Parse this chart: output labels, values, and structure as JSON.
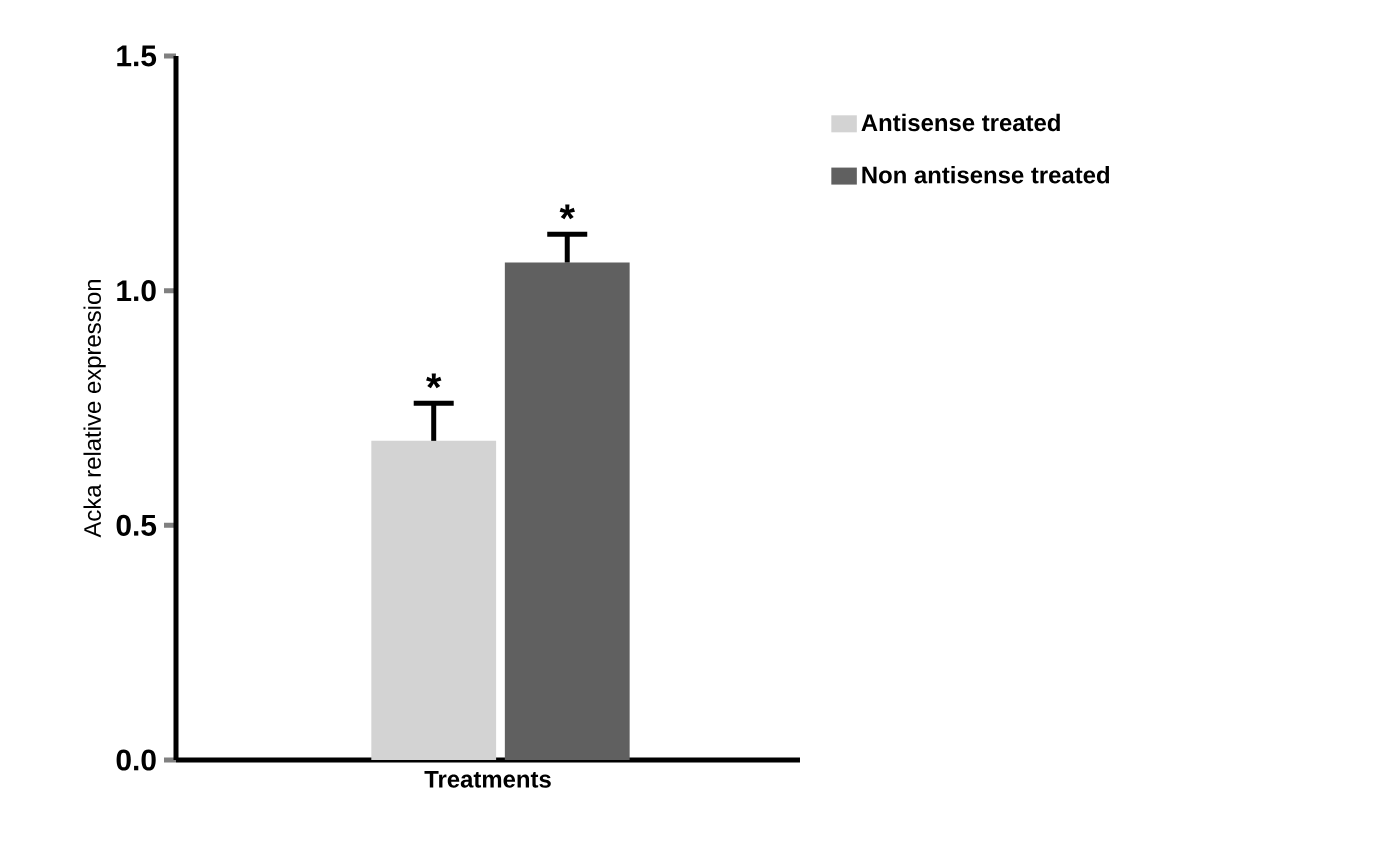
{
  "chart_data": {
    "type": "bar",
    "xlabel": "Treatments",
    "ylabel": "Acka relative expression",
    "categories": [
      null
    ],
    "series": [
      {
        "name": "Antisense treated",
        "color": "#d3d3d3",
        "values": [
          0.68
        ],
        "errors": [
          0.08
        ],
        "value_labels": [
          "*"
        ]
      },
      {
        "name": "Non antisense treated",
        "color": "#606060",
        "values": [
          1.06
        ],
        "errors": [
          0.06
        ],
        "value_labels": [
          "*"
        ]
      }
    ],
    "ylim": [
      0,
      1.5
    ],
    "yticks": [
      {
        "value": 0,
        "label": "0.0"
      },
      {
        "value": 0.5,
        "label": "0.5"
      },
      {
        "value": 1.0,
        "label": "1.0"
      },
      {
        "value": 1.5,
        "label": "1.5"
      }
    ],
    "legend": "right"
  }
}
